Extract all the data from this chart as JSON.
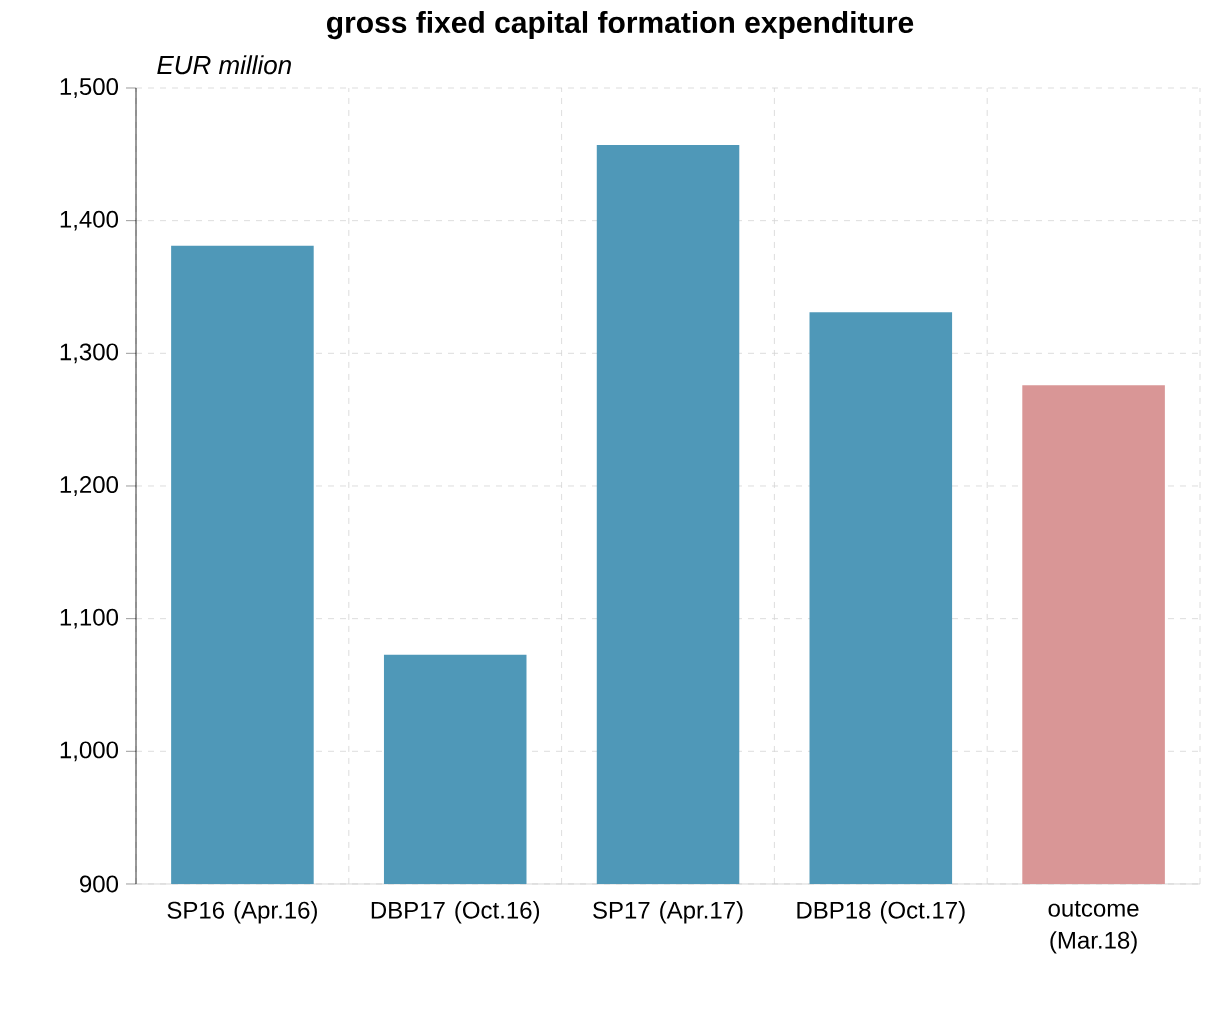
{
  "chart_data": {
    "type": "bar",
    "title": "gross fixed capital formation expenditure",
    "ylabel": "EUR million",
    "categories": [
      "SP16 (Apr.16)",
      "DBP17 (Oct.16)",
      "SP17 (Apr.17)",
      "DBP18 (Oct.17)",
      "outcome (Mar.18)"
    ],
    "values": [
      1381,
      1073,
      1457,
      1331,
      1276
    ],
    "colors": [
      "#4f98b8",
      "#4f98b8",
      "#4f98b8",
      "#4f98b8",
      "#d99696"
    ],
    "ylim": [
      900,
      1500
    ],
    "yticks": [
      900,
      {
        "value": 1000,
        "label": "1,000"
      },
      {
        "value": 1100,
        "label": "1,100"
      },
      {
        "value": 1200,
        "label": "1,200"
      },
      {
        "value": 1300,
        "label": "1,300"
      },
      {
        "value": 1400,
        "label": "1,400"
      },
      {
        "value": 1500,
        "label": "1,500"
      }
    ],
    "grid": true
  }
}
